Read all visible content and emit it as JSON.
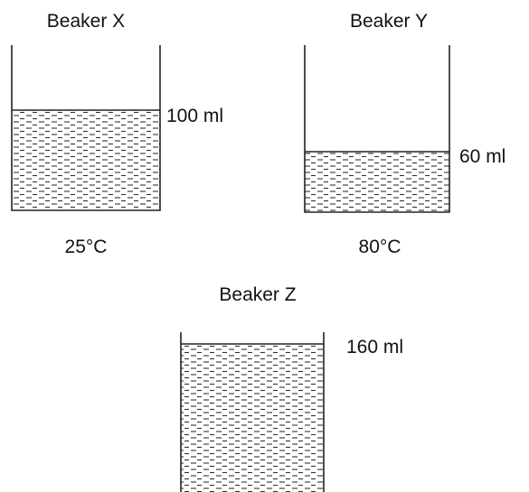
{
  "beakers": [
    {
      "name": "Beaker X",
      "volume": "100 ml",
      "temperature": "25°C"
    },
    {
      "name": "Beaker Y",
      "volume": "60 ml",
      "temperature": "80°C"
    },
    {
      "name": "Beaker Z",
      "volume": "160 ml"
    }
  ]
}
